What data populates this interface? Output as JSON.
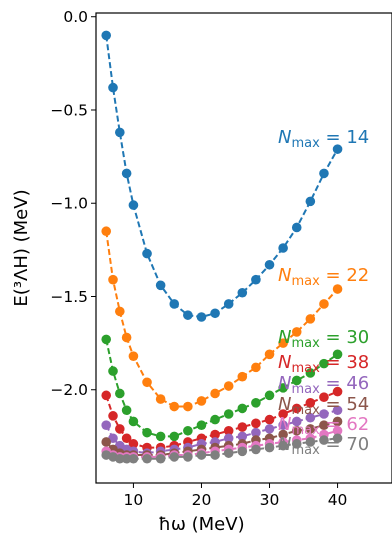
{
  "chart_data": {
    "type": "line",
    "title": "",
    "xlabel": "ħω (MeV)",
    "ylabel": "E(³ΛH) (MeV)",
    "xlim": [
      4.5,
      48
    ],
    "ylim": [
      -2.5,
      0.02
    ],
    "x_ticks": [
      10,
      20,
      30,
      40
    ],
    "x_tick_labels": [
      "10",
      "20",
      "30",
      "40"
    ],
    "y_ticks": [
      0.0,
      -0.5,
      -1.0,
      -1.5,
      -2.0
    ],
    "y_tick_labels": [
      "0.0",
      "−0.5",
      "−1.0",
      "−1.5",
      "−2.0"
    ],
    "grid": false,
    "legend": "inline labels at right end of each series",
    "x": [
      6,
      7,
      8,
      9,
      10,
      12,
      14,
      16,
      18,
      20,
      22,
      24,
      26,
      28,
      30,
      32,
      34,
      36,
      38,
      40
    ],
    "series": [
      {
        "name": "N_max = 14",
        "label_main": "N",
        "label_sub": "max",
        "label_rest": " = 14",
        "color": "#1f77b4",
        "line": "dashed",
        "values": [
          -0.1,
          -0.38,
          -0.62,
          -0.84,
          -1.01,
          -1.27,
          -1.44,
          -1.54,
          -1.6,
          -1.61,
          -1.59,
          -1.54,
          -1.48,
          -1.41,
          -1.33,
          -1.24,
          -1.13,
          -0.99,
          -0.84,
          -0.71
        ]
      },
      {
        "name": "N_max = 22",
        "label_main": "N",
        "label_sub": "max",
        "label_rest": " = 22",
        "color": "#ff7f0e",
        "line": "dashed",
        "values": [
          -1.15,
          -1.41,
          -1.58,
          -1.72,
          -1.82,
          -1.96,
          -2.05,
          -2.09,
          -2.09,
          -2.06,
          -2.02,
          -1.98,
          -1.93,
          -1.88,
          -1.81,
          -1.75,
          -1.69,
          -1.62,
          -1.54,
          -1.46
        ]
      },
      {
        "name": "N_max = 30",
        "label_main": "N",
        "label_sub": "max",
        "label_rest": " = 30",
        "color": "#2ca02c",
        "line": "dashed",
        "values": [
          -1.73,
          -1.9,
          -2.02,
          -2.11,
          -2.17,
          -2.23,
          -2.25,
          -2.25,
          -2.22,
          -2.19,
          -2.16,
          -2.13,
          -2.1,
          -2.07,
          -2.03,
          -1.99,
          -1.95,
          -1.91,
          -1.86,
          -1.81
        ]
      },
      {
        "name": "N_max = 38",
        "label_main": "N",
        "label_sub": "max",
        "label_rest": " = 38",
        "color": "#d62728",
        "line": "dashed",
        "values": [
          -2.03,
          -2.14,
          -2.21,
          -2.26,
          -2.29,
          -2.31,
          -2.31,
          -2.3,
          -2.28,
          -2.26,
          -2.24,
          -2.22,
          -2.2,
          -2.18,
          -2.16,
          -2.13,
          -2.1,
          -2.07,
          -2.04,
          -2.01
        ]
      },
      {
        "name": "N_max = 46",
        "label_main": "N",
        "label_sub": "max",
        "label_rest": " = 46",
        "color": "#9467bd",
        "line": "dashed",
        "values": [
          -2.19,
          -2.26,
          -2.3,
          -2.32,
          -2.33,
          -2.34,
          -2.33,
          -2.32,
          -2.31,
          -2.29,
          -2.28,
          -2.26,
          -2.25,
          -2.23,
          -2.21,
          -2.19,
          -2.17,
          -2.15,
          -2.13,
          -2.11
        ]
      },
      {
        "name": "N_max = 54",
        "label_main": "N",
        "label_sub": "max",
        "label_rest": " = 54",
        "color": "#8c564b",
        "line": "dashed",
        "values": [
          -2.28,
          -2.32,
          -2.34,
          -2.35,
          -2.35,
          -2.35,
          -2.35,
          -2.34,
          -2.33,
          -2.32,
          -2.31,
          -2.3,
          -2.29,
          -2.27,
          -2.26,
          -2.24,
          -2.22,
          -2.21,
          -2.19,
          -2.17
        ]
      },
      {
        "name": "N_max = 62",
        "label_main": "N",
        "label_sub": "max",
        "label_rest": " = 62",
        "color": "#e377c2",
        "line": "dashed",
        "values": [
          -2.33,
          -2.35,
          -2.36,
          -2.36,
          -2.36,
          -2.36,
          -2.36,
          -2.35,
          -2.35,
          -2.34,
          -2.33,
          -2.32,
          -2.31,
          -2.3,
          -2.29,
          -2.28,
          -2.27,
          -2.26,
          -2.24,
          -2.22
        ]
      },
      {
        "name": "N_max = 70",
        "label_main": "N",
        "label_sub": "max",
        "label_rest": " = 70",
        "color": "#7f7f7f",
        "line": "dashed",
        "values": [
          -2.35,
          -2.36,
          -2.37,
          -2.37,
          -2.37,
          -2.37,
          -2.37,
          -2.36,
          -2.36,
          -2.35,
          -2.35,
          -2.34,
          -2.33,
          -2.32,
          -2.31,
          -2.3,
          -2.29,
          -2.28,
          -2.27,
          -2.26
        ]
      }
    ]
  }
}
